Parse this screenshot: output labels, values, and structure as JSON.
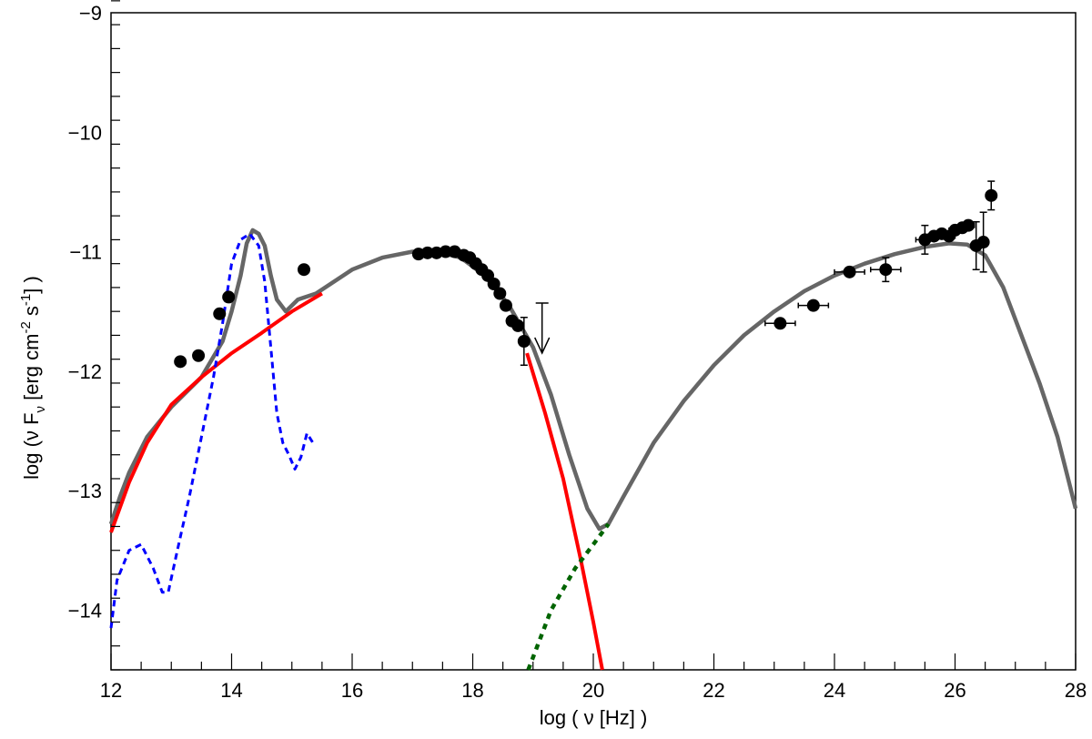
{
  "chart_data": {
    "type": "scatter",
    "xlabel": "log ( ν [Hz] )",
    "ylabel_main": "log (ν F",
    "ylabel_sub": "ν",
    "ylabel_unit_a": " [erg cm",
    "ylabel_sup1": "-2",
    "ylabel_unit_b": " s",
    "ylabel_sup2": "-1",
    "ylabel_close": "] )",
    "xlim": [
      12,
      28
    ],
    "ylim": [
      -14.5,
      -9
    ],
    "x_ticks": [
      {
        "value": 12,
        "label": "12"
      },
      {
        "value": 14,
        "label": "14"
      },
      {
        "value": 16,
        "label": "16"
      },
      {
        "value": 18,
        "label": "18"
      },
      {
        "value": 20,
        "label": "20"
      },
      {
        "value": 22,
        "label": "22"
      },
      {
        "value": 24,
        "label": "24"
      },
      {
        "value": 26,
        "label": "26"
      },
      {
        "value": 28,
        "label": "28"
      }
    ],
    "y_ticks": [
      {
        "value": -9,
        "label": "−9"
      },
      {
        "value": -10,
        "label": "−10"
      },
      {
        "value": -11,
        "label": "−11"
      },
      {
        "value": -12,
        "label": "−12"
      },
      {
        "value": -13,
        "label": "−13"
      },
      {
        "value": -14,
        "label": "−14"
      }
    ],
    "grid": false,
    "legend": "none",
    "series": [
      {
        "role": "total-model",
        "style": "solid",
        "color": "#666666",
        "x": [
          12.0,
          12.15,
          12.3,
          12.6,
          13.0,
          13.5,
          13.85,
          14.0,
          14.15,
          14.25,
          14.35,
          14.45,
          14.55,
          14.65,
          14.75,
          14.9,
          15.1,
          15.4,
          16.0,
          16.5,
          17.0,
          17.4,
          17.8,
          18.2,
          18.6,
          19.0,
          19.3,
          19.6,
          19.9,
          20.1,
          20.25,
          20.5,
          21.0,
          21.5,
          22.0,
          22.5,
          23.0,
          23.5,
          24.0,
          24.5,
          25.0,
          25.5,
          25.9,
          26.2,
          26.5,
          26.8,
          27.1,
          27.4,
          27.7,
          27.9,
          28.0
        ],
        "y": [
          -13.28,
          -13.05,
          -12.85,
          -12.55,
          -12.3,
          -12.05,
          -11.75,
          -11.5,
          -11.2,
          -10.93,
          -10.82,
          -10.85,
          -10.95,
          -11.2,
          -11.4,
          -11.5,
          -11.4,
          -11.35,
          -11.15,
          -11.05,
          -11.0,
          -11.0,
          -11.05,
          -11.2,
          -11.45,
          -11.8,
          -12.2,
          -12.7,
          -13.15,
          -13.32,
          -13.28,
          -13.05,
          -12.6,
          -12.25,
          -11.95,
          -11.7,
          -11.5,
          -11.33,
          -11.2,
          -11.1,
          -11.02,
          -10.96,
          -10.93,
          -10.94,
          -11.03,
          -11.3,
          -11.7,
          -12.1,
          -12.55,
          -12.95,
          -13.15
        ]
      },
      {
        "role": "synchrotron",
        "style": "solid",
        "color": "#ff0000",
        "x": [
          12.0,
          12.3,
          12.6,
          13.0,
          13.5,
          14.0,
          14.5,
          15.0,
          15.5,
          15.8,
          16.0
        ],
        "y": [
          -13.35,
          -12.93,
          -12.6,
          -12.28,
          -12.05,
          -11.85,
          -11.68,
          -11.5,
          -11.35,
          null,
          null
        ]
      },
      {
        "role": "synchrotron-cutoff",
        "style": "solid",
        "color": "#ff0000",
        "x": [
          18.9,
          19.2,
          19.5,
          19.8,
          20.0,
          20.15
        ],
        "y": [
          -11.85,
          -12.35,
          -12.9,
          -13.6,
          -14.1,
          -14.5
        ]
      },
      {
        "role": "host-galaxy-template",
        "style": "dashed",
        "color": "#0000ff",
        "x": [
          12.0,
          12.1,
          12.3,
          12.5,
          12.7,
          12.85,
          12.95,
          13.1,
          13.3,
          13.5,
          13.7,
          13.85,
          14.0,
          14.15,
          14.3,
          14.45,
          14.55,
          14.65,
          14.75,
          14.85,
          14.95,
          15.05,
          15.15,
          15.25,
          15.35
        ],
        "y": [
          -14.15,
          -13.75,
          -13.5,
          -13.45,
          -13.65,
          -13.85,
          -13.85,
          -13.5,
          -13.05,
          -12.55,
          -12.05,
          -11.6,
          -11.1,
          -10.9,
          -10.85,
          -10.95,
          -11.25,
          -11.8,
          -12.35,
          -12.6,
          -12.7,
          -12.82,
          -12.72,
          -12.52,
          -12.6
        ]
      },
      {
        "role": "ssc-extension",
        "style": "dotted",
        "color": "#006400",
        "x": [
          18.92,
          19.3,
          19.7,
          20.0,
          20.25
        ],
        "y": [
          -14.5,
          -14.0,
          -13.65,
          -13.45,
          -13.28
        ]
      }
    ],
    "points": [
      {
        "x": 13.15,
        "y": -11.92
      },
      {
        "x": 13.45,
        "y": -11.87
      },
      {
        "x": 13.8,
        "y": -11.52
      },
      {
        "x": 13.95,
        "y": -11.38
      },
      {
        "x": 15.2,
        "y": -11.15
      },
      {
        "x": 17.1,
        "y": -11.02
      },
      {
        "x": 17.25,
        "y": -11.01
      },
      {
        "x": 17.4,
        "y": -11.01
      },
      {
        "x": 17.55,
        "y": -11.0
      },
      {
        "x": 17.7,
        "y": -11.0
      },
      {
        "x": 17.85,
        "y": -11.03
      },
      {
        "x": 17.95,
        "y": -11.05
      },
      {
        "x": 18.05,
        "y": -11.1
      },
      {
        "x": 18.15,
        "y": -11.15
      },
      {
        "x": 18.25,
        "y": -11.2
      },
      {
        "x": 18.35,
        "y": -11.27
      },
      {
        "x": 18.45,
        "y": -11.35
      },
      {
        "x": 18.55,
        "y": -11.45
      },
      {
        "x": 18.65,
        "y": -11.58
      },
      {
        "x": 18.75,
        "y": -11.62
      },
      {
        "x": 18.85,
        "y": -11.75,
        "yerr": 0.2
      },
      {
        "x": 23.1,
        "y": -11.6,
        "xerr": 0.25
      },
      {
        "x": 23.65,
        "y": -11.45,
        "xerr": 0.25
      },
      {
        "x": 24.25,
        "y": -11.17,
        "xerr": 0.25
      },
      {
        "x": 24.85,
        "y": -11.15,
        "xerr": 0.25,
        "yerr": 0.1
      },
      {
        "x": 25.5,
        "y": -10.9,
        "xerr": 0.15,
        "yerr": 0.12
      },
      {
        "x": 25.65,
        "y": -10.87,
        "xerr": 0.1
      },
      {
        "x": 25.78,
        "y": -10.85,
        "xerr": 0.1
      },
      {
        "x": 25.9,
        "y": -10.87,
        "xerr": 0.1
      },
      {
        "x": 26.0,
        "y": -10.82,
        "xerr": 0.1
      },
      {
        "x": 26.12,
        "y": -10.8,
        "xerr": 0.1
      },
      {
        "x": 26.22,
        "y": -10.78,
        "xerr": 0.1
      },
      {
        "x": 26.35,
        "y": -10.95,
        "yerr": 0.2
      },
      {
        "x": 26.47,
        "y": -10.92,
        "yerr": 0.25
      },
      {
        "x": 26.6,
        "y": -10.53,
        "yerr": 0.12
      }
    ],
    "upper_limits": [
      {
        "x": 19.15,
        "y": -11.43
      }
    ]
  }
}
